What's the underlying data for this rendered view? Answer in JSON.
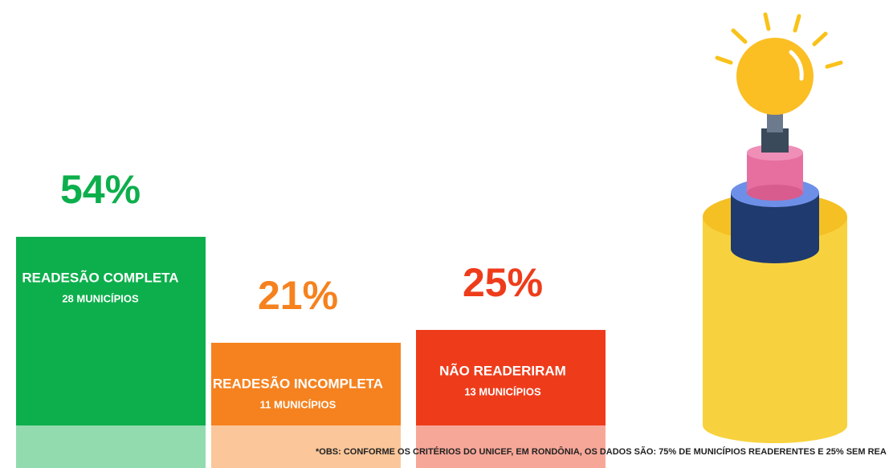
{
  "chart_data": {
    "type": "bar",
    "categories": [
      "READESÃO COMPLETA",
      "READESÃO INCOMPLETA",
      "NÃO READERIRAM"
    ],
    "sublabels": [
      "28 MUNICÍPIOS",
      "11 MUNICÍPIOS",
      "13 MUNICÍPIOS"
    ],
    "values": [
      54,
      21,
      25
    ],
    "value_labels": [
      "54%",
      "21%",
      "25%"
    ],
    "colors": [
      "#0daf4c",
      "#f5821f",
      "#ee3c1b"
    ],
    "note": "*OBS: CONFORME OS CRITÉRIOS DO UNICEF, EM RONDÔNIA, OS DADOS SÃO: 75% DE MUNICÍPIOS READERENTES E 25% SEM REA"
  }
}
